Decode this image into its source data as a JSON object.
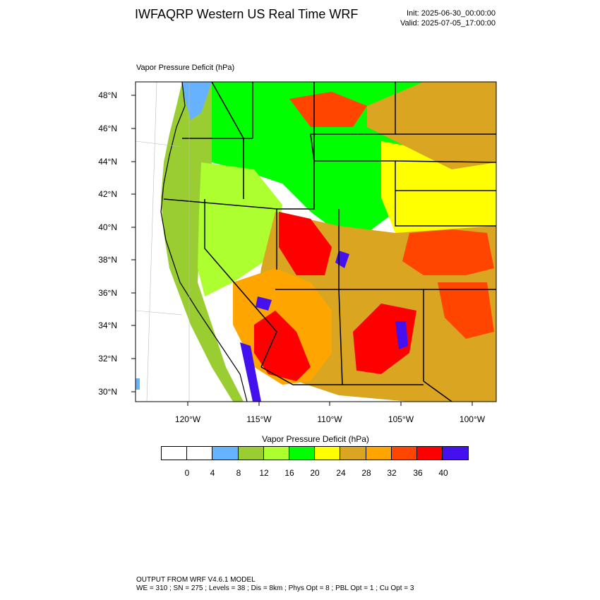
{
  "header": {
    "title": "IWFAQRP Western US Real Time WRF",
    "init": "Init: 2025-06-30_00:00:00",
    "valid": "Valid: 2025-07-05_17:00:00"
  },
  "map": {
    "caption": "Vapor Pressure Deficit   (hPa)",
    "lat_labels": [
      "48°N",
      "46°N",
      "44°N",
      "42°N",
      "40°N",
      "38°N",
      "36°N",
      "34°N",
      "32°N",
      "30°N"
    ],
    "lon_labels": [
      "120°W",
      "115°W",
      "110°W",
      "105°W",
      "100°W"
    ],
    "field": "vapor pressure deficit",
    "palette": {
      "land_none": "#ffffff",
      "water": "#66b2ff",
      "lt4_8": "#66b3ff",
      "8_12": "#9acd32",
      "12_16": "#adff2f",
      "16_20": "#00ff00",
      "20_24": "#ffff00",
      "24_28": "#daa520",
      "28_32": "#ffa500",
      "32_36": "#ff4500",
      "36_40": "#ff0000",
      "gt40": "#4411ee"
    }
  },
  "colorbar": {
    "title": "Vapor Pressure Deficit  (hPa)",
    "colors": [
      "#ffffff",
      "#ffffff",
      "#66b3ff",
      "#9acd32",
      "#adff2f",
      "#00ff00",
      "#ffff00",
      "#daa520",
      "#ffa500",
      "#ff4500",
      "#ff0000",
      "#4411ee"
    ],
    "ticks": [
      "0",
      "4",
      "8",
      "12",
      "16",
      "20",
      "24",
      "28",
      "32",
      "36",
      "40"
    ]
  },
  "footer": {
    "line1": "OUTPUT FROM WRF V4.6.1 MODEL",
    "line2": "WE = 310 ; SN = 275 ; Levels = 38 ; Dis = 8km ; Phys Opt = 8 ; PBL Opt = 1 ; Cu Opt = 3"
  }
}
